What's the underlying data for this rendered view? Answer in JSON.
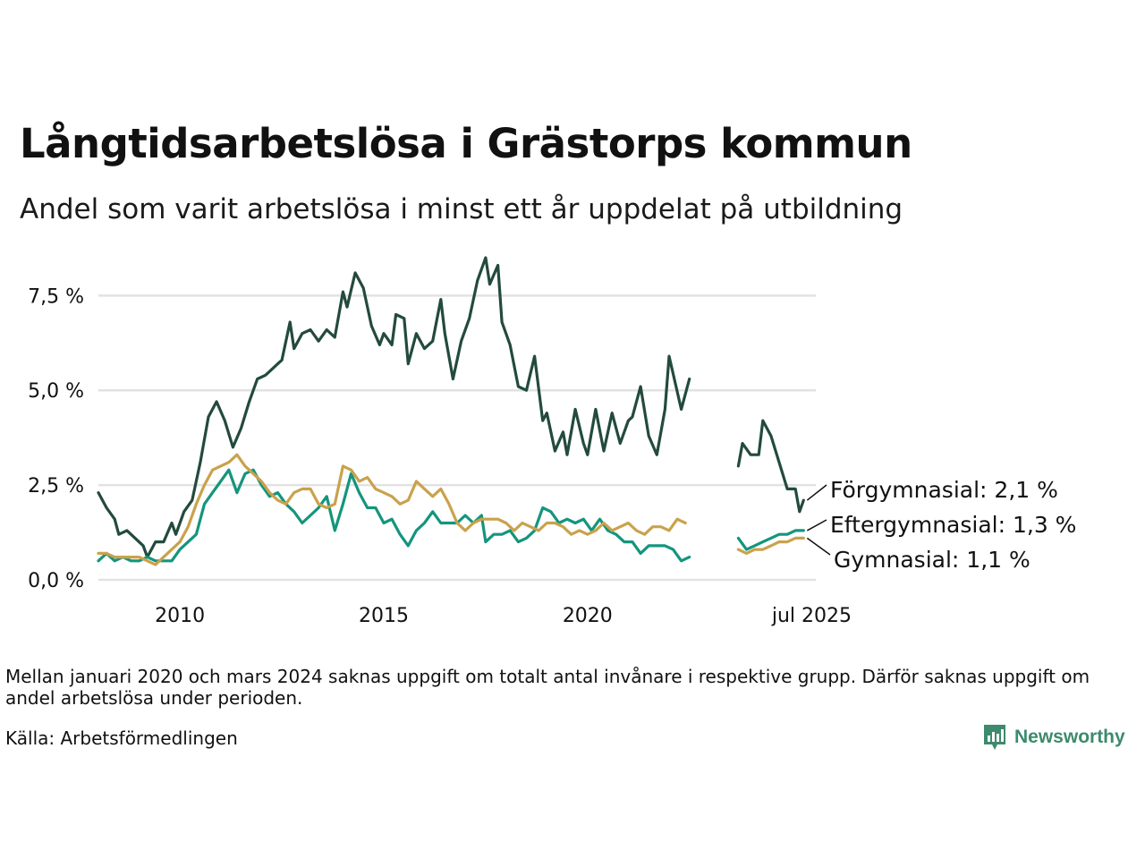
{
  "title": "Långtidsarbetslösa i Grästorps kommun",
  "subtitle": "Andel som varit arbetslösa i minst ett år uppdelat på utbildning",
  "note": "Mellan januari 2020 och mars 2024 saknas uppgift om totalt antal invånare i respektive grupp. Därför saknas uppgift om andel arbetslösa under perioden.",
  "source": "Källa: Arbetsförmedlingen",
  "brand": {
    "name": "Newsworthy",
    "icon": "newsworthy-logo-icon",
    "color": "#3d8a6c"
  },
  "chart_data": {
    "type": "line",
    "xlim": [
      2008.0,
      2025.6
    ],
    "ylim": [
      0,
      8.5
    ],
    "grid": true,
    "yticks": [
      {
        "value": 0,
        "label": "0,0 %"
      },
      {
        "value": 2.5,
        "label": "2,5 %"
      },
      {
        "value": 5.0,
        "label": "5,0 %"
      },
      {
        "value": 7.5,
        "label": "7,5 %"
      }
    ],
    "xticks": [
      {
        "value": 2010,
        "label": "2010"
      },
      {
        "value": 2015,
        "label": "2015"
      },
      {
        "value": 2020,
        "label": "2020"
      },
      {
        "value": 2025.5,
        "label": "jul 2025"
      }
    ],
    "series": [
      {
        "name": "Förgymnasial",
        "end_label": "Förgymnasial: 2,1 %",
        "color": "#234a3e",
        "segments": [
          [
            [
              2008.0,
              2.3
            ],
            [
              2008.2,
              1.9
            ],
            [
              2008.4,
              1.6
            ],
            [
              2008.5,
              1.2
            ],
            [
              2008.7,
              1.3
            ],
            [
              2008.9,
              1.1
            ],
            [
              2009.1,
              0.9
            ],
            [
              2009.2,
              0.6
            ],
            [
              2009.4,
              1.0
            ],
            [
              2009.6,
              1.0
            ],
            [
              2009.8,
              1.5
            ],
            [
              2009.9,
              1.2
            ],
            [
              2010.1,
              1.8
            ],
            [
              2010.3,
              2.1
            ],
            [
              2010.5,
              3.1
            ],
            [
              2010.7,
              4.3
            ],
            [
              2010.9,
              4.7
            ],
            [
              2011.1,
              4.2
            ],
            [
              2011.3,
              3.5
            ],
            [
              2011.5,
              4.0
            ],
            [
              2011.7,
              4.7
            ],
            [
              2011.9,
              5.3
            ],
            [
              2012.1,
              5.4
            ],
            [
              2012.2,
              5.5
            ],
            [
              2012.4,
              5.7
            ],
            [
              2012.5,
              5.8
            ],
            [
              2012.7,
              6.8
            ],
            [
              2012.8,
              6.1
            ],
            [
              2013.0,
              6.5
            ],
            [
              2013.2,
              6.6
            ],
            [
              2013.4,
              6.3
            ],
            [
              2013.6,
              6.6
            ],
            [
              2013.8,
              6.4
            ],
            [
              2014.0,
              7.6
            ],
            [
              2014.1,
              7.2
            ],
            [
              2014.3,
              8.1
            ],
            [
              2014.5,
              7.7
            ],
            [
              2014.7,
              6.7
            ],
            [
              2014.9,
              6.2
            ],
            [
              2015.0,
              6.5
            ],
            [
              2015.2,
              6.2
            ],
            [
              2015.3,
              7.0
            ],
            [
              2015.5,
              6.9
            ],
            [
              2015.6,
              5.7
            ],
            [
              2015.8,
              6.5
            ],
            [
              2016.0,
              6.1
            ],
            [
              2016.2,
              6.3
            ],
            [
              2016.4,
              7.4
            ],
            [
              2016.5,
              6.5
            ],
            [
              2016.7,
              5.3
            ],
            [
              2016.9,
              6.3
            ],
            [
              2017.1,
              6.9
            ],
            [
              2017.3,
              7.9
            ],
            [
              2017.5,
              8.5
            ],
            [
              2017.6,
              7.8
            ],
            [
              2017.8,
              8.3
            ],
            [
              2017.9,
              6.8
            ],
            [
              2018.1,
              6.2
            ],
            [
              2018.3,
              5.1
            ],
            [
              2018.5,
              5.0
            ],
            [
              2018.7,
              5.9
            ],
            [
              2018.9,
              4.2
            ],
            [
              2019.0,
              4.4
            ],
            [
              2019.2,
              3.4
            ],
            [
              2019.4,
              3.9
            ],
            [
              2019.5,
              3.3
            ],
            [
              2019.7,
              4.5
            ],
            [
              2019.9,
              3.6
            ],
            [
              2020.0,
              3.3
            ],
            [
              2020.2,
              4.5
            ],
            [
              2020.4,
              3.4
            ],
            [
              2020.6,
              4.4
            ],
            [
              2020.8,
              3.6
            ],
            [
              2021.0,
              4.2
            ],
            [
              2021.1,
              4.3
            ],
            [
              2021.3,
              5.1
            ],
            [
              2021.5,
              3.8
            ],
            [
              2021.7,
              3.3
            ],
            [
              2021.9,
              4.5
            ],
            [
              2022.0,
              5.9
            ],
            [
              2022.3,
              4.5
            ],
            [
              2022.5,
              5.3
            ]
          ],
          [
            [
              2023.7,
              3.0
            ],
            [
              2023.8,
              3.6
            ],
            [
              2024.0,
              3.3
            ],
            [
              2024.2,
              3.3
            ],
            [
              2024.3,
              4.2
            ],
            [
              2024.5,
              3.8
            ],
            [
              2024.7,
              3.1
            ],
            [
              2024.9,
              2.4
            ],
            [
              2025.1,
              2.4
            ],
            [
              2025.2,
              1.8
            ],
            [
              2025.3,
              2.1
            ]
          ]
        ]
      },
      {
        "name": "Eftergymnasial",
        "end_label": "Eftergymnasial: 1,3 %",
        "color": "#14957d",
        "segments": [
          [
            [
              2008.0,
              0.5
            ],
            [
              2008.2,
              0.7
            ],
            [
              2008.4,
              0.5
            ],
            [
              2008.6,
              0.6
            ],
            [
              2008.8,
              0.5
            ],
            [
              2009.0,
              0.5
            ],
            [
              2009.2,
              0.6
            ],
            [
              2009.4,
              0.5
            ],
            [
              2009.6,
              0.5
            ],
            [
              2009.8,
              0.5
            ],
            [
              2010.0,
              0.8
            ],
            [
              2010.2,
              1.0
            ],
            [
              2010.4,
              1.2
            ],
            [
              2010.6,
              2.0
            ],
            [
              2010.8,
              2.3
            ],
            [
              2011.0,
              2.6
            ],
            [
              2011.2,
              2.9
            ],
            [
              2011.4,
              2.3
            ],
            [
              2011.6,
              2.8
            ],
            [
              2011.8,
              2.9
            ],
            [
              2012.0,
              2.5
            ],
            [
              2012.2,
              2.2
            ],
            [
              2012.4,
              2.3
            ],
            [
              2012.6,
              2.0
            ],
            [
              2012.8,
              1.8
            ],
            [
              2013.0,
              1.5
            ],
            [
              2013.2,
              1.7
            ],
            [
              2013.4,
              1.9
            ],
            [
              2013.6,
              2.2
            ],
            [
              2013.8,
              1.3
            ],
            [
              2014.0,
              2.0
            ],
            [
              2014.2,
              2.8
            ],
            [
              2014.4,
              2.3
            ],
            [
              2014.6,
              1.9
            ],
            [
              2014.8,
              1.9
            ],
            [
              2015.0,
              1.5
            ],
            [
              2015.2,
              1.6
            ],
            [
              2015.4,
              1.2
            ],
            [
              2015.6,
              0.9
            ],
            [
              2015.8,
              1.3
            ],
            [
              2016.0,
              1.5
            ],
            [
              2016.2,
              1.8
            ],
            [
              2016.4,
              1.5
            ],
            [
              2016.6,
              1.5
            ],
            [
              2016.8,
              1.5
            ],
            [
              2017.0,
              1.7
            ],
            [
              2017.2,
              1.5
            ],
            [
              2017.4,
              1.7
            ],
            [
              2017.5,
              1.0
            ],
            [
              2017.7,
              1.2
            ],
            [
              2017.9,
              1.2
            ],
            [
              2018.1,
              1.3
            ],
            [
              2018.3,
              1.0
            ],
            [
              2018.5,
              1.1
            ],
            [
              2018.7,
              1.3
            ],
            [
              2018.9,
              1.9
            ],
            [
              2019.1,
              1.8
            ],
            [
              2019.3,
              1.5
            ],
            [
              2019.5,
              1.6
            ],
            [
              2019.7,
              1.5
            ],
            [
              2019.9,
              1.6
            ],
            [
              2020.1,
              1.3
            ],
            [
              2020.3,
              1.6
            ],
            [
              2020.5,
              1.3
            ],
            [
              2020.7,
              1.2
            ],
            [
              2020.9,
              1.0
            ],
            [
              2021.1,
              1.0
            ],
            [
              2021.3,
              0.7
            ],
            [
              2021.5,
              0.9
            ],
            [
              2021.7,
              0.9
            ],
            [
              2021.9,
              0.9
            ],
            [
              2022.1,
              0.8
            ],
            [
              2022.3,
              0.5
            ],
            [
              2022.5,
              0.6
            ]
          ],
          [
            [
              2023.7,
              1.1
            ],
            [
              2023.9,
              0.8
            ],
            [
              2024.1,
              0.9
            ],
            [
              2024.3,
              1.0
            ],
            [
              2024.5,
              1.1
            ],
            [
              2024.7,
              1.2
            ],
            [
              2024.9,
              1.2
            ],
            [
              2025.1,
              1.3
            ],
            [
              2025.3,
              1.3
            ]
          ]
        ]
      },
      {
        "name": "Gymnasial",
        "end_label": "Gymnasial: 1,1 %",
        "color": "#c9a24c",
        "segments": [
          [
            [
              2008.0,
              0.7
            ],
            [
              2008.2,
              0.7
            ],
            [
              2008.4,
              0.6
            ],
            [
              2008.6,
              0.6
            ],
            [
              2008.8,
              0.6
            ],
            [
              2009.0,
              0.6
            ],
            [
              2009.2,
              0.5
            ],
            [
              2009.4,
              0.4
            ],
            [
              2009.6,
              0.6
            ],
            [
              2009.8,
              0.8
            ],
            [
              2010.0,
              1.0
            ],
            [
              2010.2,
              1.4
            ],
            [
              2010.4,
              2.0
            ],
            [
              2010.6,
              2.5
            ],
            [
              2010.8,
              2.9
            ],
            [
              2011.0,
              3.0
            ],
            [
              2011.2,
              3.1
            ],
            [
              2011.4,
              3.3
            ],
            [
              2011.6,
              3.0
            ],
            [
              2011.8,
              2.8
            ],
            [
              2012.0,
              2.6
            ],
            [
              2012.2,
              2.3
            ],
            [
              2012.4,
              2.1
            ],
            [
              2012.6,
              2.0
            ],
            [
              2012.8,
              2.3
            ],
            [
              2013.0,
              2.4
            ],
            [
              2013.2,
              2.4
            ],
            [
              2013.4,
              2.0
            ],
            [
              2013.6,
              1.9
            ],
            [
              2013.8,
              2.0
            ],
            [
              2014.0,
              3.0
            ],
            [
              2014.2,
              2.9
            ],
            [
              2014.4,
              2.6
            ],
            [
              2014.6,
              2.7
            ],
            [
              2014.8,
              2.4
            ],
            [
              2015.0,
              2.3
            ],
            [
              2015.2,
              2.2
            ],
            [
              2015.4,
              2.0
            ],
            [
              2015.6,
              2.1
            ],
            [
              2015.8,
              2.6
            ],
            [
              2016.0,
              2.4
            ],
            [
              2016.2,
              2.2
            ],
            [
              2016.4,
              2.4
            ],
            [
              2016.6,
              2.0
            ],
            [
              2016.8,
              1.5
            ],
            [
              2017.0,
              1.3
            ],
            [
              2017.2,
              1.5
            ],
            [
              2017.4,
              1.6
            ],
            [
              2017.6,
              1.6
            ],
            [
              2017.8,
              1.6
            ],
            [
              2018.0,
              1.5
            ],
            [
              2018.2,
              1.3
            ],
            [
              2018.4,
              1.5
            ],
            [
              2018.6,
              1.4
            ],
            [
              2018.8,
              1.3
            ],
            [
              2019.0,
              1.5
            ],
            [
              2019.2,
              1.5
            ],
            [
              2019.4,
              1.4
            ],
            [
              2019.6,
              1.2
            ],
            [
              2019.8,
              1.3
            ],
            [
              2020.0,
              1.2
            ],
            [
              2020.2,
              1.3
            ],
            [
              2020.4,
              1.5
            ],
            [
              2020.6,
              1.3
            ],
            [
              2020.8,
              1.4
            ],
            [
              2021.0,
              1.5
            ],
            [
              2021.2,
              1.3
            ],
            [
              2021.4,
              1.2
            ],
            [
              2021.6,
              1.4
            ],
            [
              2021.8,
              1.4
            ],
            [
              2022.0,
              1.3
            ],
            [
              2022.2,
              1.6
            ],
            [
              2022.4,
              1.5
            ]
          ],
          [
            [
              2023.7,
              0.8
            ],
            [
              2023.9,
              0.7
            ],
            [
              2024.1,
              0.8
            ],
            [
              2024.3,
              0.8
            ],
            [
              2024.5,
              0.9
            ],
            [
              2024.7,
              1.0
            ],
            [
              2024.9,
              1.0
            ],
            [
              2025.1,
              1.1
            ],
            [
              2025.3,
              1.1
            ]
          ]
        ]
      }
    ]
  }
}
